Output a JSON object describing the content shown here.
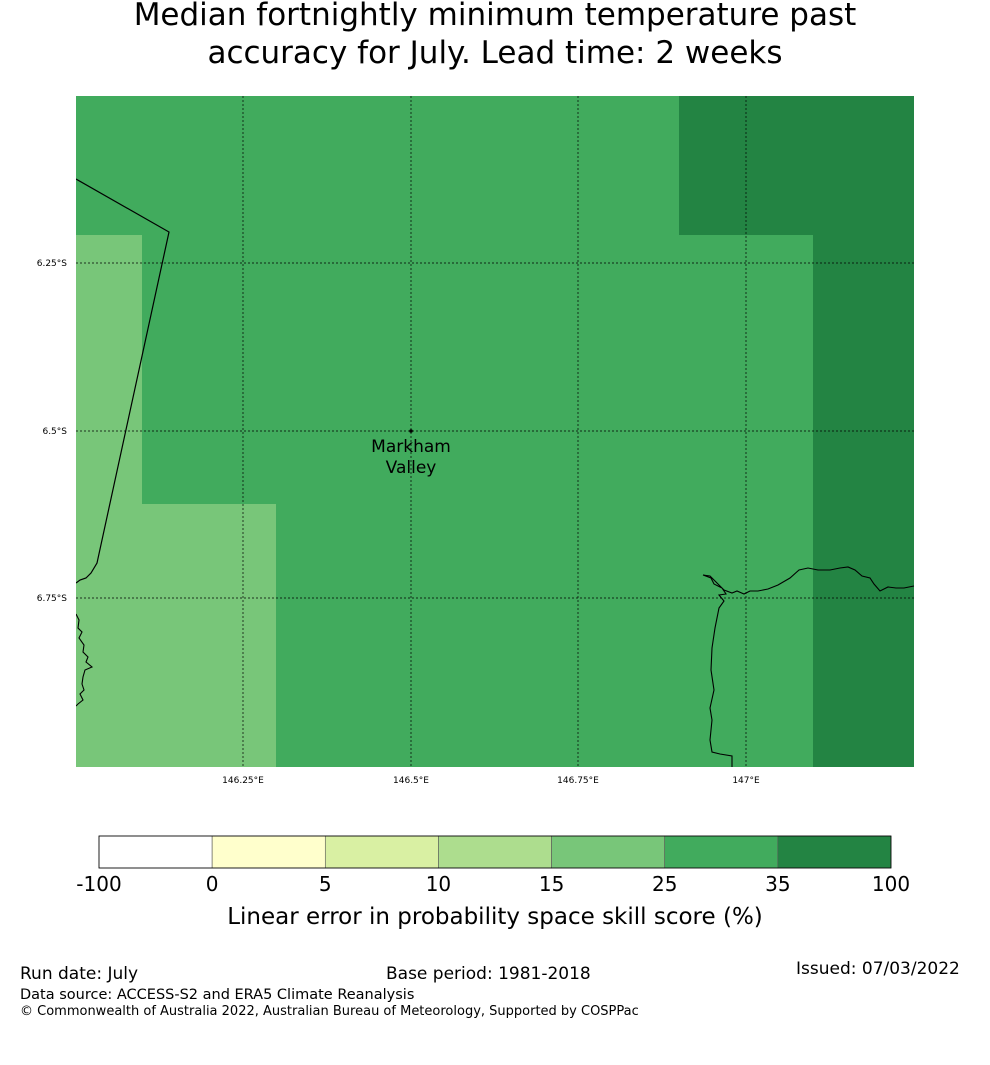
{
  "title": {
    "line1": "Median fortnightly minimum temperature past",
    "line2": "accuracy for July. Lead time: 2 weeks"
  },
  "map": {
    "lat_ticks": [
      "6.25°S",
      "6.5°S",
      "6.75°S"
    ],
    "lon_ticks": [
      "146.25°E",
      "146.5°E",
      "146.75°E",
      "147°E"
    ],
    "place": {
      "line1": "Markham",
      "line2": "Valley"
    },
    "colors": {
      "c15_25": "#78c679",
      "c25_35": "#41ab5d",
      "c35_100": "#238443"
    }
  },
  "colorbar": {
    "ticks": [
      "-100",
      "0",
      "5",
      "10",
      "15",
      "25",
      "35",
      "100"
    ],
    "colors": [
      "#ffffff",
      "#ffffcc",
      "#d9f0a3",
      "#addd8e",
      "#78c679",
      "#41ab5d",
      "#238443"
    ],
    "label": "Linear error in probability space skill score (%)"
  },
  "footer": {
    "run_date": "Run date: July",
    "base_period": "Base period: 1981-2018",
    "issued": "Issued: 07/03/2022",
    "data_source": "Data source: ACCESS-S2 and ERA5 Climate Reanalysis",
    "copyright": "© Commonwealth of Australia 2022, Australian Bureau of Meteorology, Supported by COSPPac"
  }
}
